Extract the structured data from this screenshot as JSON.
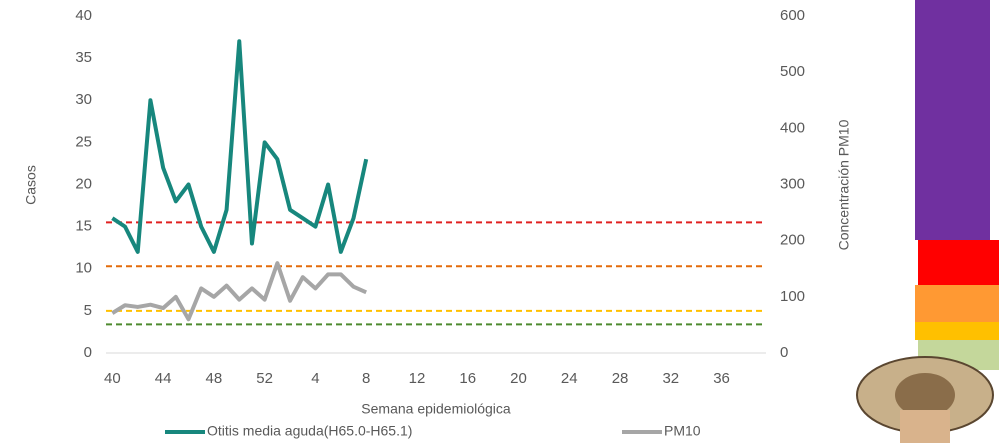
{
  "chart_data": {
    "type": "line",
    "x_label": "Semana epidemiológica",
    "y_label": "Casos",
    "y2_label": "Concentración PM10",
    "categories": [
      "40",
      null,
      null,
      null,
      "44",
      null,
      null,
      null,
      "48",
      null,
      null,
      null,
      "52",
      null,
      null,
      null,
      "4",
      null,
      null,
      null,
      "8",
      null,
      null,
      null,
      "12",
      null,
      null,
      null,
      "16",
      null,
      null,
      null,
      "20",
      null,
      null,
      null,
      "24",
      null,
      null,
      null,
      "28",
      null,
      null,
      null,
      "32",
      null,
      null,
      null,
      "36",
      null,
      null,
      null
    ],
    "series": [
      {
        "name": "Otitis media aguda(H65.0-H65.1)",
        "color": "#17877d",
        "values": [
          16,
          15,
          12,
          30,
          22,
          18,
          20,
          15,
          12,
          17,
          37,
          13,
          25,
          23,
          17,
          16,
          15,
          20,
          12,
          16,
          23,
          null,
          null,
          null,
          null,
          null,
          null,
          null,
          null,
          null,
          null,
          null,
          null,
          null,
          null,
          null,
          null,
          null,
          null,
          null,
          null,
          null,
          null,
          null,
          null,
          null,
          null,
          null,
          null,
          null,
          null,
          null
        ]
      },
      {
        "name": "PM10",
        "color": "#a6a6a6",
        "axis": "y2",
        "values": [
          71,
          85,
          82,
          86,
          80,
          100,
          60,
          115,
          100,
          120,
          95,
          115,
          95,
          160,
          93,
          135,
          115,
          140,
          140,
          118,
          108,
          null,
          null,
          null,
          null,
          null,
          null,
          null,
          null,
          null,
          null,
          null,
          null,
          null,
          null,
          null,
          null,
          null,
          null,
          null,
          null,
          null,
          null,
          null,
          null,
          null,
          null,
          null,
          null,
          null,
          null,
          null
        ]
      }
    ],
    "ylim": [
      0,
      40
    ],
    "yticks": [
      0,
      5,
      10,
      15,
      20,
      25,
      30,
      35,
      40
    ],
    "y2lim": [
      0,
      600
    ],
    "y2ticks": [
      0,
      100,
      200,
      300,
      400,
      500,
      600
    ],
    "reference_lines": [
      {
        "value": 15.5,
        "color": "#e02020"
      },
      {
        "value": 10.3,
        "color": "#e36c0a"
      },
      {
        "value": 5,
        "color": "#ffc000"
      },
      {
        "value": 3.4,
        "color": "#4e8a2e"
      }
    ],
    "grid": false
  }
}
